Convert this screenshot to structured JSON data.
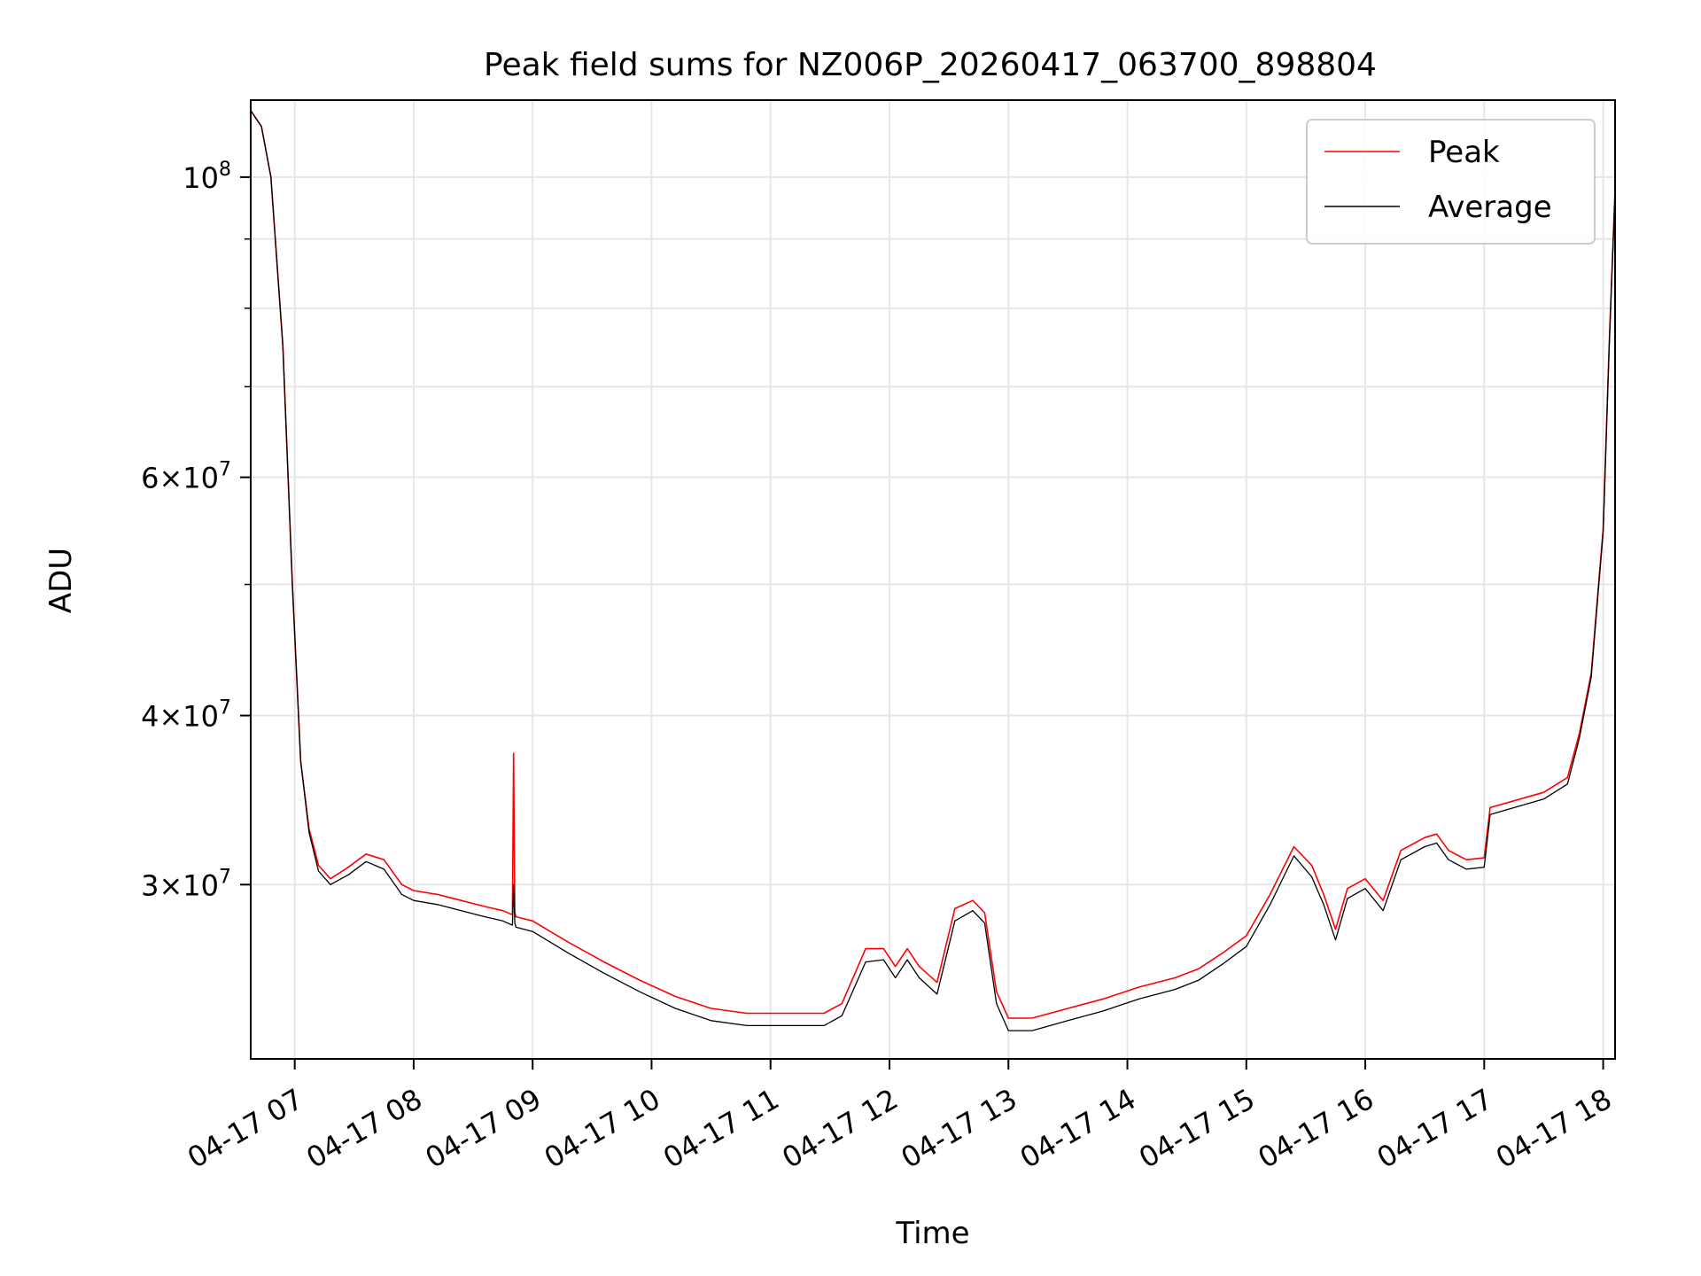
{
  "chart_data": {
    "type": "line",
    "title": "Peak field sums for NZ006P_20260417_063700_898804",
    "xlabel": "Time",
    "ylabel": "ADU",
    "yscale": "log",
    "xlim": [
      6.63,
      18.1
    ],
    "ylim": [
      22300000,
      114000000
    ],
    "grid": true,
    "legend_position": "upper right",
    "x_ticks": [
      {
        "x": 7,
        "label": "04-17 07"
      },
      {
        "x": 8,
        "label": "04-17 08"
      },
      {
        "x": 9,
        "label": "04-17 09"
      },
      {
        "x": 10,
        "label": "04-17 10"
      },
      {
        "x": 11,
        "label": "04-17 11"
      },
      {
        "x": 12,
        "label": "04-17 12"
      },
      {
        "x": 13,
        "label": "04-17 13"
      },
      {
        "x": 14,
        "label": "04-17 14"
      },
      {
        "x": 15,
        "label": "04-17 15"
      },
      {
        "x": 16,
        "label": "04-17 16"
      },
      {
        "x": 17,
        "label": "04-17 17"
      },
      {
        "x": 18,
        "label": "04-17 18"
      }
    ],
    "y_major_ticks": [
      {
        "y": 30000000,
        "mantissa": "3",
        "exponent": "7"
      },
      {
        "y": 40000000,
        "mantissa": "4",
        "exponent": "7"
      },
      {
        "y": 60000000,
        "mantissa": "6",
        "exponent": "7"
      },
      {
        "y": 100000000,
        "mantissa": "10",
        "exponent": "8"
      }
    ],
    "y_minor_grid": [
      50000000,
      70000000,
      80000000,
      90000000
    ],
    "series": [
      {
        "name": "Peak",
        "color": "#ff0000",
        "x": [
          6.63,
          6.72,
          6.8,
          6.9,
          6.98,
          7.05,
          7.12,
          7.2,
          7.3,
          7.45,
          7.6,
          7.75,
          7.9,
          8.0,
          8.2,
          8.4,
          8.6,
          8.75,
          8.83,
          8.84,
          8.85,
          8.86,
          9.0,
          9.3,
          9.6,
          9.9,
          10.2,
          10.5,
          10.8,
          11.0,
          11.2,
          11.45,
          11.6,
          11.8,
          11.95,
          12.05,
          12.15,
          12.25,
          12.4,
          12.55,
          12.7,
          12.8,
          12.9,
          13.0,
          13.05,
          13.2,
          13.5,
          13.8,
          14.1,
          14.4,
          14.6,
          14.8,
          15.0,
          15.2,
          15.4,
          15.55,
          15.65,
          15.75,
          15.85,
          16.0,
          16.15,
          16.3,
          16.5,
          16.6,
          16.7,
          16.85,
          17.0,
          17.05,
          17.3,
          17.5,
          17.7,
          17.8,
          17.9,
          18.0,
          18.05,
          18.1
        ],
        "values": [
          112000000,
          109000000,
          100000000,
          75000000,
          50000000,
          37000000,
          33000000,
          31000000,
          30300000,
          30900000,
          31600000,
          31300000,
          30000000,
          29700000,
          29500000,
          29200000,
          28900000,
          28700000,
          28500000,
          37500000,
          28600000,
          28400000,
          28200000,
          27200000,
          26300000,
          25500000,
          24800000,
          24300000,
          24100000,
          24100000,
          24100000,
          24100000,
          24500000,
          26900000,
          26900000,
          26100000,
          26900000,
          26100000,
          25400000,
          28800000,
          29200000,
          28600000,
          25000000,
          23900000,
          23900000,
          23900000,
          24300000,
          24700000,
          25200000,
          25600000,
          26000000,
          26700000,
          27500000,
          29500000,
          32000000,
          31000000,
          29500000,
          27800000,
          29800000,
          30300000,
          29200000,
          31800000,
          32500000,
          32700000,
          31800000,
          31300000,
          31400000,
          34200000,
          34700000,
          35100000,
          36000000,
          38800000,
          43000000,
          55000000,
          75000000,
          98000000
        ]
      },
      {
        "name": "Average",
        "color": "#000000",
        "x": [
          6.63,
          6.72,
          6.8,
          6.9,
          6.98,
          7.05,
          7.12,
          7.2,
          7.3,
          7.45,
          7.6,
          7.75,
          7.9,
          8.0,
          8.2,
          8.4,
          8.6,
          8.75,
          8.83,
          8.84,
          8.85,
          8.86,
          9.0,
          9.3,
          9.6,
          9.9,
          10.2,
          10.5,
          10.8,
          11.0,
          11.2,
          11.45,
          11.6,
          11.8,
          11.95,
          12.05,
          12.15,
          12.25,
          12.4,
          12.55,
          12.7,
          12.8,
          12.9,
          13.0,
          13.05,
          13.2,
          13.5,
          13.8,
          14.1,
          14.4,
          14.6,
          14.8,
          15.0,
          15.2,
          15.4,
          15.55,
          15.65,
          15.75,
          15.85,
          16.0,
          16.15,
          16.3,
          16.5,
          16.6,
          16.7,
          16.85,
          17.0,
          17.05,
          17.3,
          17.5,
          17.7,
          17.8,
          17.9,
          18.0,
          18.05,
          18.1
        ],
        "values": [
          112000000,
          109000000,
          100000000,
          75000000,
          50000000,
          37000000,
          32800000,
          30700000,
          30000000,
          30500000,
          31200000,
          30800000,
          29500000,
          29200000,
          29000000,
          28700000,
          28400000,
          28200000,
          28000000,
          30000000,
          28100000,
          27900000,
          27700000,
          26700000,
          25800000,
          25000000,
          24300000,
          23800000,
          23600000,
          23600000,
          23600000,
          23600000,
          24000000,
          26300000,
          26400000,
          25600000,
          26400000,
          25600000,
          24900000,
          28200000,
          28700000,
          28100000,
          24500000,
          23400000,
          23400000,
          23400000,
          23800000,
          24200000,
          24700000,
          25100000,
          25500000,
          26200000,
          27000000,
          29000000,
          31500000,
          30400000,
          29000000,
          27300000,
          29300000,
          29800000,
          28700000,
          31300000,
          32000000,
          32200000,
          31300000,
          30800000,
          30900000,
          33800000,
          34300000,
          34700000,
          35600000,
          38500000,
          42700000,
          54700000,
          74700000,
          97500000
        ]
      }
    ]
  }
}
